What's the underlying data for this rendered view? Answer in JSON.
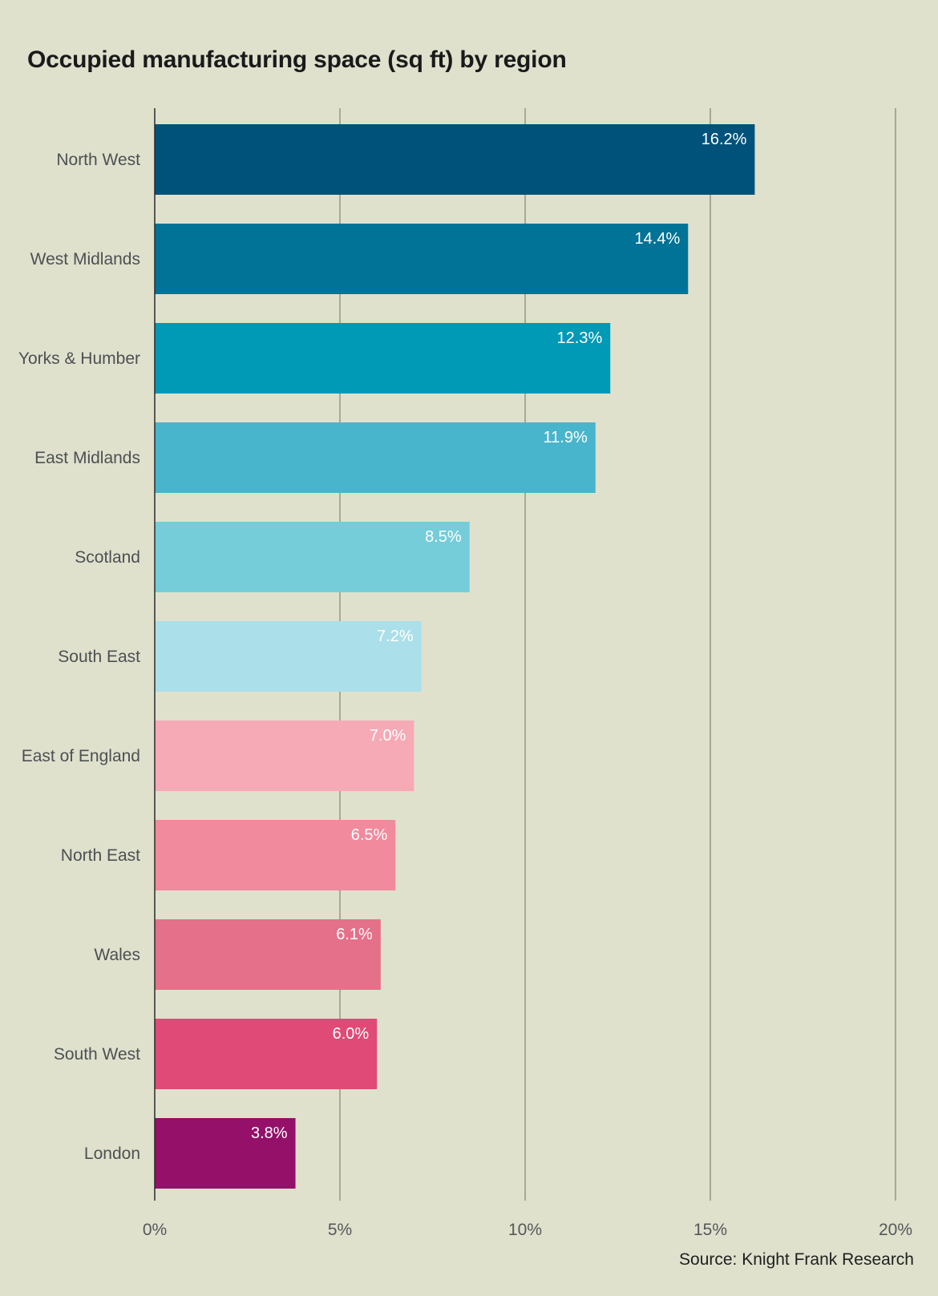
{
  "title": "Occupied manufacturing space (sq ft) by region",
  "source": "Source: Knight Frank Research",
  "chart_data": {
    "type": "bar",
    "orientation": "horizontal",
    "title": "Occupied manufacturing space (sq ft) by region",
    "categories": [
      "North West",
      "West Midlands",
      "Yorks & Humber",
      "East Midlands",
      "Scotland",
      "South East",
      "East of England",
      "North East",
      "Wales",
      "South West",
      "London"
    ],
    "values": [
      16.2,
      14.4,
      12.3,
      11.9,
      8.5,
      7.2,
      7.0,
      6.5,
      6.1,
      6.0,
      3.8
    ],
    "data_labels": [
      "16.2%",
      "14.4%",
      "12.3%",
      "11.9%",
      "8.5%",
      "7.2%",
      "7.0%",
      "6.5%",
      "6.1%",
      "6.0%",
      "3.8%"
    ],
    "colors": [
      "#00527a",
      "#007396",
      "#0099b6",
      "#48b5cc",
      "#74cdd9",
      "#abdfe9",
      "#f6aab6",
      "#f28a9e",
      "#e57089",
      "#e04a76",
      "#951069"
    ],
    "xlim": [
      0,
      20
    ],
    "xticks": [
      0,
      5,
      10,
      15,
      20
    ],
    "xtick_labels": [
      "0%",
      "5%",
      "10%",
      "15%",
      "20%"
    ],
    "grid": true,
    "xlabel": "",
    "ylabel": ""
  }
}
